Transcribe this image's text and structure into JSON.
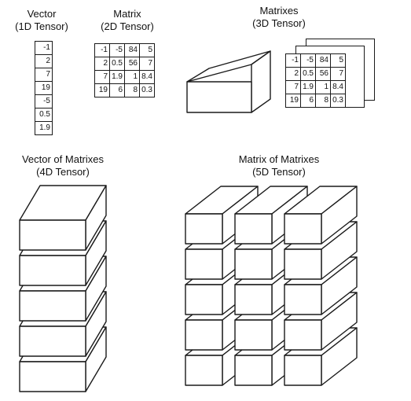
{
  "captions": {
    "vector": {
      "line1": "Vector",
      "line2": "(1D Tensor)"
    },
    "matrix": {
      "line1": "Matrix",
      "line2": "(2D Tensor)"
    },
    "matrixes": {
      "line1": "Matrixes",
      "line2": "(3D Tensor)"
    },
    "vector_of_matrixes": {
      "line1": "Vector of Matrixes",
      "line2": "(4D Tensor)"
    },
    "matrix_of_matrixes": {
      "line1": "Matrix of Matrixes",
      "line2": "(5D Tensor)"
    }
  },
  "vector": [
    "-1",
    "2",
    "7",
    "19",
    "-5",
    "0.5",
    "1.9"
  ],
  "matrix": [
    [
      "-1",
      "-5",
      "84",
      "5"
    ],
    [
      "2",
      "0.5",
      "56",
      "7"
    ],
    [
      "7",
      "1.9",
      "1",
      "8.4"
    ],
    [
      "19",
      "6",
      "8",
      "0.3"
    ]
  ],
  "matrix_stack_sheets": 3,
  "tensor4d": {
    "rows": 5,
    "cols": 1
  },
  "tensor5d": {
    "rows": 5,
    "cols": 3
  },
  "colors": {
    "stroke": "#1a1a1a",
    "fill": "#ffffff",
    "text": "#111111"
  }
}
